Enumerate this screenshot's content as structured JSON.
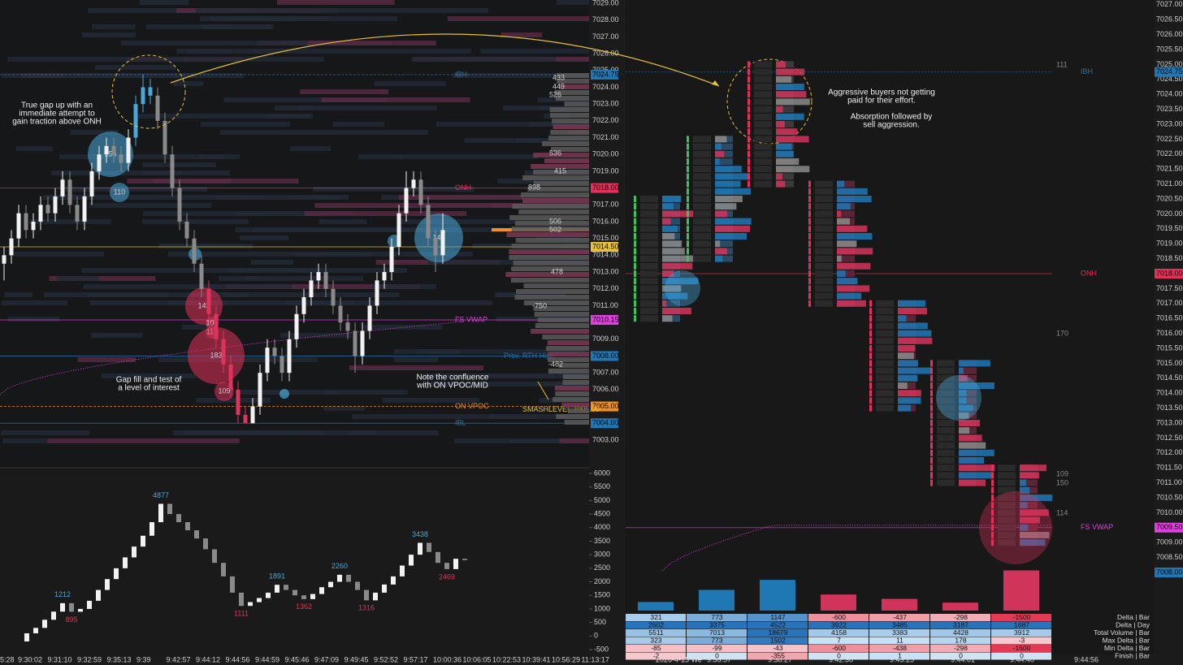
{
  "left_axis": [
    "7029.00",
    "7028.00",
    "7027.00",
    "7026.00",
    "7025.00",
    "7024.00",
    "7023.00",
    "7022.00",
    "7021.00",
    "7020.00",
    "7019.00",
    "7018.00",
    "7017.00",
    "7016.00",
    "7015.00",
    "7014.00",
    "7013.00",
    "7012.00",
    "7011.00",
    "7010.00",
    "7009.00",
    "7008.00",
    "7007.00",
    "7006.00",
    "7005.00",
    "7004.00",
    "7003.00"
  ],
  "left_axis_marks": [
    {
      "text": "7024.75",
      "color": "#1f77b4",
      "level": "IBH"
    },
    {
      "text": "7018.00",
      "color": "#e0325a",
      "level": "ONH"
    },
    {
      "text": "7014.50",
      "color": "#e8c234"
    },
    {
      "text": "7010.15",
      "color": "#e040e0",
      "level": "FS VWAP"
    },
    {
      "text": "7008.00",
      "color": "#1f77b4",
      "level": "Prev. RTH High"
    },
    {
      "text": "7005.00",
      "color": "#f0901e",
      "level": "ON VPOC"
    },
    {
      "text": "7004.00",
      "color": "#1f77b4",
      "level": "IBL"
    }
  ],
  "smash_level": "SMASHLEVEL 7005.00",
  "right_axis": [
    "7027.00",
    "7026.50",
    "7026.00",
    "7025.50",
    "7025.00",
    "7024.50",
    "7024.00",
    "7023.50",
    "7023.00",
    "7022.50",
    "7022.00",
    "7021.50",
    "7021.00",
    "7020.50",
    "7020.00",
    "7019.50",
    "7019.00",
    "7018.50",
    "7018.00",
    "7017.50",
    "7017.00",
    "7016.50",
    "7016.00",
    "7015.50",
    "7015.00",
    "7014.50",
    "7014.00",
    "7013.50",
    "7013.00",
    "7012.50",
    "7012.00",
    "7011.50",
    "7011.00",
    "7010.50",
    "7010.00",
    "7009.50",
    "7009.00",
    "7008.50",
    "7008.00"
  ],
  "right_axis_marks": [
    {
      "text": "7024.75",
      "color": "#1f77b4",
      "level": "IBH"
    },
    {
      "text": "7018.00",
      "color": "#e0325a",
      "level": "ONH"
    },
    {
      "text": "7009.50",
      "color": "#e040e0",
      "level": "FS VWAP"
    },
    {
      "text": "7008.00",
      "color": "#1f77b4"
    }
  ],
  "delta_axis": [
    6000,
    5500,
    5000,
    4500,
    4000,
    3500,
    3000,
    2500,
    2000,
    1500,
    1000,
    500,
    0,
    -500
  ],
  "left_times": [
    "5:28",
    "9:30:02",
    "9:31:10",
    "9:32:59",
    "9:35:13",
    "9:39",
    "9:42:57",
    "9:44:12",
    "9:44:56",
    "9:44:59",
    "9:45:46",
    "9:47:09",
    "9:49:45",
    "9:52:52",
    "9:57:17",
    "10:00:36",
    "10:06:05",
    "10:22:53",
    "10:39:41",
    "10:56:29",
    "11:13:17"
  ],
  "right_times": [
    "2026-4-15 We",
    "9:36:57",
    "9:38:27",
    "9:42:30",
    "9:43:25",
    "9:44:01",
    "9:44:40",
    "9:44:56"
  ],
  "candles": [
    [
      7013.5,
      7014.5,
      7012.5,
      7014
    ],
    [
      7014,
      7015.5,
      7013.5,
      7015
    ],
    [
      7015,
      7017,
      7014.5,
      7016.5
    ],
    [
      7016.5,
      7017,
      7015,
      7015.5
    ],
    [
      7015.5,
      7016.5,
      7015,
      7016
    ],
    [
      7016,
      7017.5,
      7015.5,
      7017
    ],
    [
      7017,
      7017.5,
      7016,
      7016.5
    ],
    [
      7016.5,
      7018,
      7016,
      7017.5
    ],
    [
      7017.5,
      7019,
      7017,
      7018.5
    ],
    [
      7018.5,
      7019,
      7016.5,
      7017
    ],
    [
      7017,
      7017.5,
      7015.5,
      7016
    ],
    [
      7016,
      7018,
      7015.5,
      7017.5
    ],
    [
      7017.5,
      7019.5,
      7017,
      7019
    ],
    [
      7019,
      7020.5,
      7018.5,
      7020
    ],
    [
      7020,
      7021,
      7019.5,
      7020.5
    ],
    [
      7020.5,
      7021,
      7019.5,
      7020
    ],
    [
      7020,
      7020.5,
      7019,
      7019.5
    ],
    [
      7019.5,
      7021.5,
      7019,
      7021
    ],
    [
      7021,
      7023.5,
      7020.5,
      7023
    ],
    [
      7023,
      7024.75,
      7022.5,
      7024
    ],
    [
      7024,
      7024.5,
      7023,
      7023.5
    ],
    [
      7023.5,
      7024,
      7021.5,
      7022
    ],
    [
      7022,
      7022.5,
      7019.5,
      7020
    ],
    [
      7020,
      7020.5,
      7017.5,
      7018
    ],
    [
      7018,
      7018.5,
      7015.5,
      7016
    ],
    [
      7016,
      7016.5,
      7014.5,
      7015
    ],
    [
      7015,
      7015.5,
      7013,
      7013.5
    ],
    [
      7013.5,
      7014,
      7011.5,
      7012
    ],
    [
      7012,
      7012.5,
      7010,
      7010.5
    ],
    [
      7010.5,
      7011,
      7008.5,
      7009
    ],
    [
      7009,
      7009.5,
      7007,
      7007.5
    ],
    [
      7007.5,
      7008,
      7005.5,
      7006
    ],
    [
      7006,
      7006.5,
      7004,
      7004.5
    ],
    [
      7004.5,
      7005,
      7004,
      7004
    ],
    [
      7004,
      7005.5,
      7004,
      7005
    ],
    [
      7005,
      7007.5,
      7004.5,
      7007
    ],
    [
      7007,
      7009,
      7006.5,
      7008.5
    ],
    [
      7008.5,
      7009,
      7007.5,
      7008
    ],
    [
      7008,
      7008.5,
      7006.5,
      7007
    ],
    [
      7007,
      7009.5,
      7006.5,
      7009
    ],
    [
      7009,
      7011,
      7008.5,
      7010.5
    ],
    [
      7010.5,
      7012,
      7010,
      7011.5
    ],
    [
      7011.5,
      7013,
      7011,
      7012.5
    ],
    [
      7012.5,
      7013.5,
      7012,
      7013
    ],
    [
      7013,
      7013.5,
      7011.5,
      7012
    ],
    [
      7012,
      7012.5,
      7010.5,
      7011
    ],
    [
      7011,
      7011.5,
      7009.5,
      7010
    ],
    [
      7010,
      7010.5,
      7009,
      7009.5
    ],
    [
      7009.5,
      7010,
      7007,
      7008
    ],
    [
      7008,
      7010,
      7007.5,
      7009.5
    ],
    [
      7009.5,
      7011.5,
      7009,
      7011
    ],
    [
      7011,
      7013,
      7010.5,
      7012.5
    ],
    [
      7012.5,
      7013.5,
      7012,
      7013
    ],
    [
      7013,
      7015,
      7012.5,
      7014.5
    ],
    [
      7014.5,
      7017,
      7014,
      7016.5
    ],
    [
      7016.5,
      7019,
      7016,
      7018
    ],
    [
      7018,
      7019,
      7017.5,
      7018.5
    ],
    [
      7018.5,
      7019,
      7016.5,
      7017
    ],
    [
      7017,
      7017.5,
      7014.5,
      7015
    ],
    [
      7015,
      7015.5,
      7013,
      7014
    ],
    [
      7014,
      7016.5,
      7013.5,
      7015.5
    ]
  ],
  "cum_delta": [
    -200,
    100,
    300,
    600,
    900,
    1212,
    895,
    1000,
    1300,
    1700,
    2100,
    2500,
    2900,
    3300,
    3700,
    4200,
    4877,
    4500,
    4200,
    3900,
    3600,
    3200,
    2700,
    2200,
    1600,
    1111,
    1250,
    1400,
    1600,
    1891,
    1700,
    1500,
    1362,
    1550,
    1800,
    2000,
    2260,
    2000,
    1700,
    1316,
    1600,
    1900,
    2200,
    2600,
    3000,
    3438,
    3100,
    2700,
    2469,
    2850,
    2800
  ],
  "delta_labels": [
    4877,
    1212,
    895,
    1111,
    1891,
    1362,
    2260,
    1316,
    3438,
    2469
  ],
  "bubbles": [
    "156",
    "110",
    "143",
    "109",
    "113",
    "183",
    "109",
    "142"
  ],
  "profile_labels": [
    "433",
    "449",
    "526",
    "536",
    "415",
    "898",
    "506",
    "502",
    "478",
    "-750",
    "-482"
  ],
  "right_levels": [
    "111",
    "170",
    "109",
    "150",
    "114"
  ],
  "annotations": [
    "True gap up with an",
    "immediate attempt to",
    "gain traction above ONH",
    "Gap fill and test of",
    "a level of interest",
    "Note the confluence",
    "with ON VPOC/MID",
    "Aggressive buyers not getting",
    "paid for their effort.",
    "Absorption followed by",
    "sell aggression."
  ],
  "table": {
    "rows": [
      [
        321,
        773,
        1147,
        -600,
        -437,
        -298,
        -1500,
        "Delta | Bar"
      ],
      [
        2602,
        3375,
        4522,
        3922,
        3485,
        3187,
        1687,
        "Delta | Day"
      ],
      [
        5511,
        7013,
        18679,
        4158,
        3383,
        4428,
        3912,
        "Total Volume | Bar"
      ],
      [
        323,
        773,
        1502,
        7,
        11,
        178,
        -3,
        "Max Delta | Bar"
      ],
      [
        -85,
        -99,
        -43,
        -600,
        -438,
        -298,
        -1500,
        "Min Delta | Bar"
      ],
      [
        -2,
        0,
        -355,
        0,
        1,
        0,
        0,
        "Finish | Bar"
      ]
    ]
  }
}
